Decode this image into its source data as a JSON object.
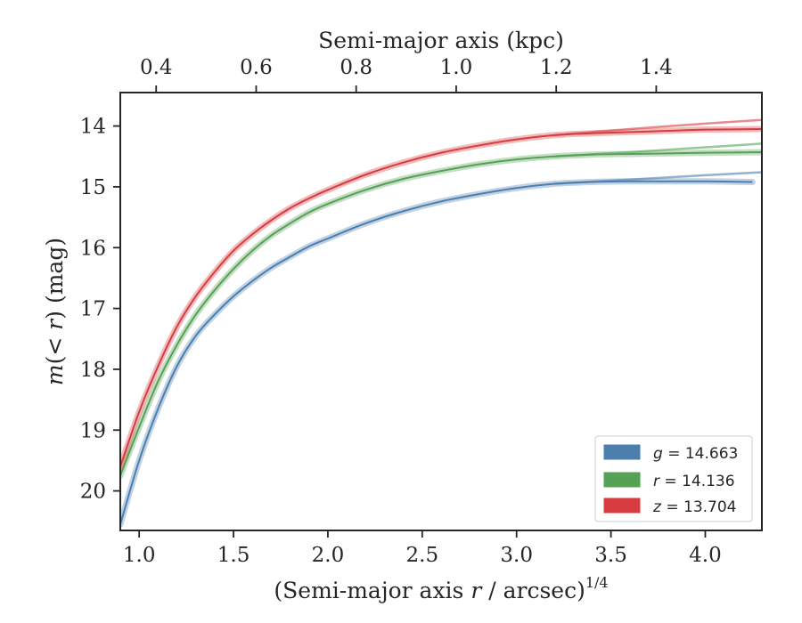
{
  "chart_data": {
    "type": "line",
    "x_label": {
      "prefix": "(Semi-major axis ",
      "var": "r",
      "mid": " / arcsec)",
      "sup": "1/4"
    },
    "y_label": {
      "var": "m",
      "mid": "(< ",
      "var2": "r",
      "tail": ") (mag)"
    },
    "top_label": "Semi-major axis (kpc)",
    "xlim": [
      0.9,
      4.3
    ],
    "ylim": [
      20.65,
      13.45
    ],
    "y_inverted": true,
    "x_ticks": [
      1.0,
      1.5,
      2.0,
      2.5,
      3.0,
      3.5,
      4.0
    ],
    "x_tick_labels": [
      "1.0",
      "1.5",
      "2.0",
      "2.5",
      "3.0",
      "3.5",
      "4.0"
    ],
    "y_ticks": [
      14,
      15,
      16,
      17,
      18,
      19,
      20
    ],
    "y_tick_labels": [
      "14",
      "15",
      "16",
      "17",
      "18",
      "19",
      "20"
    ],
    "top_ticks_x": [
      1.09,
      1.62,
      2.15,
      2.68,
      3.21,
      3.74
    ],
    "top_tick_labels": [
      "0.4",
      "0.6",
      "0.8",
      "1.0",
      "1.2",
      "1.4"
    ],
    "legend_position": "lower-right",
    "series": [
      {
        "name": "g = 14.663",
        "band": "g",
        "legend_value": "14.663",
        "color": "#4c7fae",
        "x": [
          0.9,
          1.0,
          1.1,
          1.2,
          1.3,
          1.4,
          1.5,
          1.6,
          1.7,
          1.8,
          1.9,
          2.0,
          2.2,
          2.4,
          2.6,
          2.8,
          3.0,
          3.2,
          3.4,
          3.6,
          3.8,
          4.0,
          4.25
        ],
        "values": [
          20.55,
          19.5,
          18.65,
          17.95,
          17.45,
          17.1,
          16.8,
          16.55,
          16.33,
          16.15,
          15.98,
          15.85,
          15.6,
          15.4,
          15.24,
          15.12,
          15.02,
          14.95,
          14.92,
          14.91,
          14.91,
          14.91,
          14.92
        ],
        "light_x": [
          3.2,
          3.6,
          4.0,
          4.3
        ],
        "light_values": [
          14.95,
          14.88,
          14.81,
          14.76
        ]
      },
      {
        "name": "r = 14.136",
        "band": "r",
        "legend_value": "14.136",
        "color": "#55a155",
        "x": [
          0.9,
          1.0,
          1.1,
          1.2,
          1.3,
          1.4,
          1.5,
          1.6,
          1.7,
          1.8,
          1.9,
          2.0,
          2.2,
          2.4,
          2.6,
          2.8,
          3.0,
          3.2,
          3.4,
          3.6,
          3.8,
          4.0,
          4.3
        ],
        "values": [
          19.75,
          18.95,
          18.2,
          17.6,
          17.1,
          16.7,
          16.35,
          16.05,
          15.8,
          15.6,
          15.42,
          15.28,
          15.05,
          14.87,
          14.74,
          14.63,
          14.55,
          14.5,
          14.47,
          14.46,
          14.45,
          14.44,
          14.43
        ],
        "light_x": [
          3.2,
          3.6,
          4.0,
          4.3
        ],
        "light_values": [
          14.5,
          14.43,
          14.35,
          14.29
        ]
      },
      {
        "name": "z = 13.704",
        "band": "z",
        "legend_value": "13.704",
        "color": "#d63c40",
        "x": [
          0.9,
          1.0,
          1.1,
          1.2,
          1.3,
          1.4,
          1.5,
          1.6,
          1.7,
          1.8,
          1.9,
          2.0,
          2.2,
          2.4,
          2.6,
          2.8,
          3.0,
          3.2,
          3.4,
          3.6,
          3.8,
          4.0,
          4.3
        ],
        "values": [
          19.6,
          18.7,
          17.95,
          17.3,
          16.8,
          16.4,
          16.05,
          15.78,
          15.55,
          15.35,
          15.19,
          15.05,
          14.8,
          14.6,
          14.44,
          14.32,
          14.22,
          14.15,
          14.12,
          14.1,
          14.08,
          14.06,
          14.05
        ],
        "light_x": [
          3.2,
          3.6,
          4.0,
          4.3
        ],
        "light_values": [
          14.15,
          14.05,
          13.96,
          13.9
        ]
      }
    ]
  }
}
